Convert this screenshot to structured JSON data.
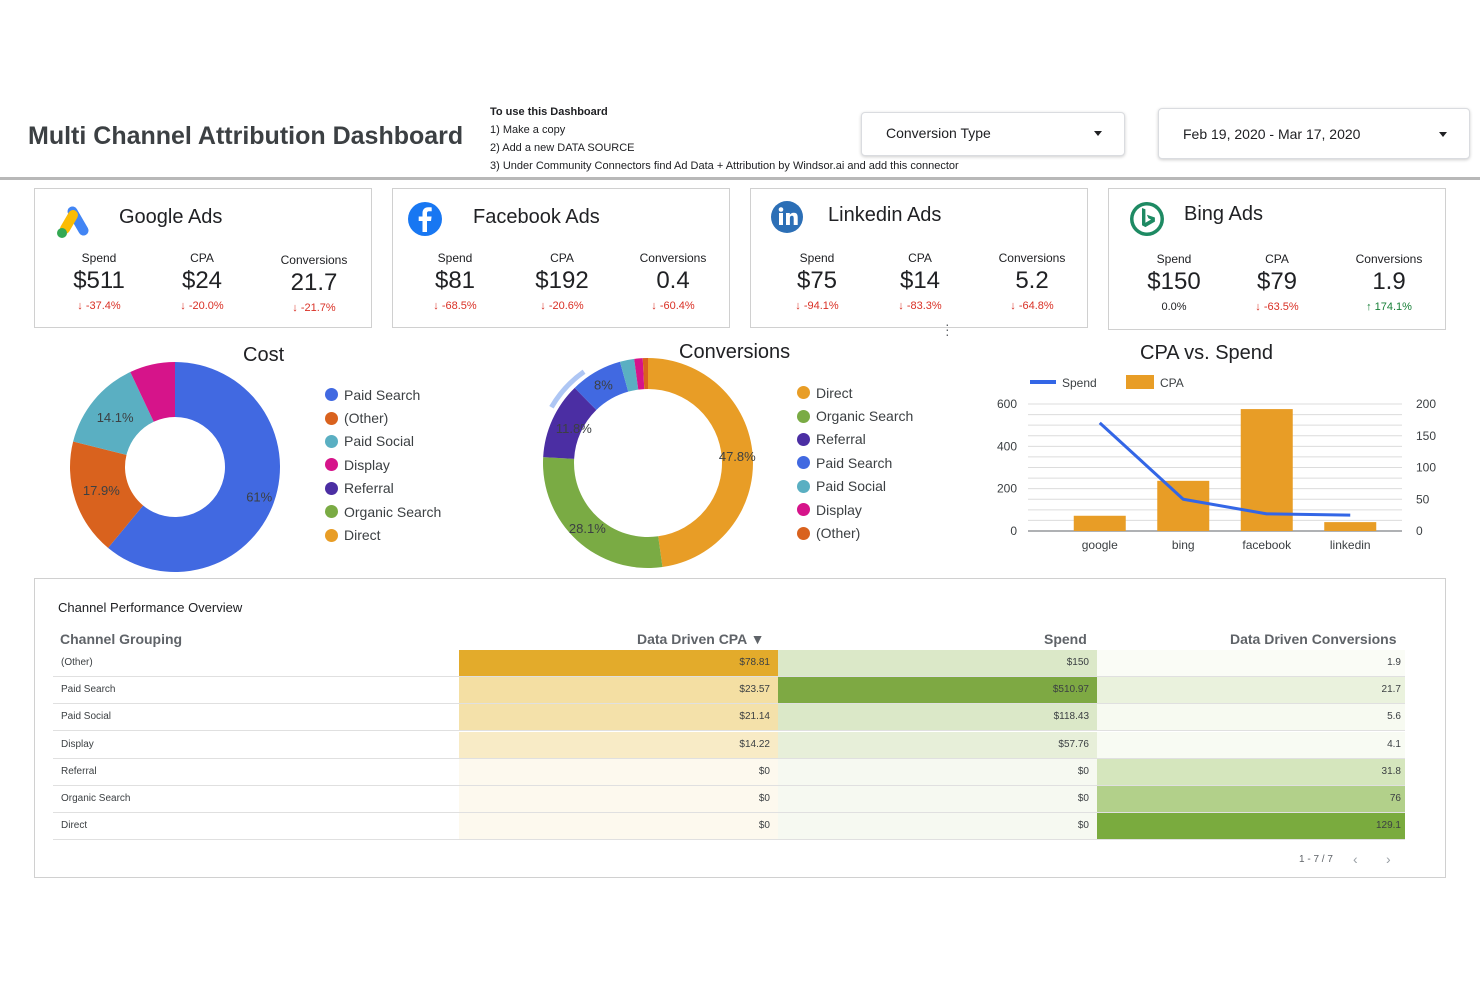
{
  "header": {
    "title": "Multi Channel Attribution Dashboard",
    "instructions": {
      "heading": "To use this Dashboard",
      "step1": "1) Make a copy",
      "step2": "2) Add a new DATA SOURCE",
      "step3": "3) Under Community Connectors find Ad Data + Attribution by Windsor.ai and add this connector"
    },
    "conversion_dropdown": "Conversion Type",
    "date_range": "Feb 19, 2020 - Mar 17, 2020"
  },
  "cards": [
    {
      "name": "Google Ads",
      "spend_label": "Spend",
      "spend": "$511",
      "spend_delta": "↓ -37.4%",
      "cpa_label": "CPA",
      "cpa": "$24",
      "cpa_delta": "↓ -20.0%",
      "conv_label": "Conversions",
      "conv": "21.7",
      "conv_delta": "↓ -21.7%"
    },
    {
      "name": "Facebook Ads",
      "spend_label": "Spend",
      "spend": "$81",
      "spend_delta": "↓ -68.5%",
      "cpa_label": "CPA",
      "cpa": "$192",
      "cpa_delta": "↓ -20.6%",
      "conv_label": "Conversions",
      "conv": "0.4",
      "conv_delta": "↓ -60.4%"
    },
    {
      "name": "Linkedin Ads",
      "spend_label": "Spend",
      "spend": "$75",
      "spend_delta": "↓ -94.1%",
      "cpa_label": "CPA",
      "cpa": "$14",
      "cpa_delta": "↓ -83.3%",
      "conv_label": "Conversions",
      "conv": "5.2",
      "conv_delta": "↓ -64.8%"
    },
    {
      "name": "Bing Ads",
      "spend_label": "Spend",
      "spend": "$150",
      "spend_delta": "0.0%",
      "cpa_label": "CPA",
      "cpa": "$79",
      "cpa_delta": "↓ -63.5%",
      "conv_label": "Conversions",
      "conv": "1.9",
      "conv_delta": "↑ 174.1%"
    }
  ],
  "colors": {
    "blue": "#4169e1",
    "orange_red": "#d9621e",
    "teal": "#5aafc2",
    "magenta": "#d6148a",
    "purple": "#4b2ea3",
    "green": "#7aab44",
    "amber": "#e89d26",
    "line_blue": "#3366e6",
    "bar_amber": "#e89d26"
  },
  "cost_chart": {
    "title": "Cost",
    "legend": [
      "Paid Search",
      "(Other)",
      "Paid Social",
      "Display",
      "Referral",
      "Organic Search",
      "Direct"
    ],
    "slices": [
      {
        "name": "Paid Search",
        "value": 61,
        "label": "61%",
        "color": "#4169e1"
      },
      {
        "name": "(Other)",
        "value": 17.9,
        "label": "17.9%",
        "color": "#d9621e"
      },
      {
        "name": "Paid Social",
        "value": 14.1,
        "label": "14.1%",
        "color": "#5aafc2"
      },
      {
        "name": "Display",
        "value": 7,
        "label": "",
        "color": "#d6148a"
      }
    ]
  },
  "conversions_chart": {
    "title": "Conversions",
    "legend": [
      "Direct",
      "Organic Search",
      "Referral",
      "Paid Search",
      "Paid Social",
      "Display",
      "(Other)"
    ],
    "slices": [
      {
        "name": "Direct",
        "value": 47.8,
        "label": "47.8%",
        "color": "#e89d26"
      },
      {
        "name": "Organic Search",
        "value": 28.1,
        "label": "28.1%",
        "color": "#7aab44"
      },
      {
        "name": "Referral",
        "value": 11.8,
        "label": "11.8%",
        "color": "#4b2ea3"
      },
      {
        "name": "Paid Search",
        "value": 8,
        "label": "8%",
        "color": "#4169e1"
      },
      {
        "name": "Paid Social",
        "value": 2.2,
        "label": "",
        "color": "#5aafc2"
      },
      {
        "name": "Display",
        "value": 1.3,
        "label": "",
        "color": "#d6148a"
      },
      {
        "name": "(Other)",
        "value": 0.8,
        "label": "",
        "color": "#d9621e"
      }
    ]
  },
  "chart_data": {
    "type": "bar",
    "title": "CPA vs. Spend",
    "categories": [
      "google",
      "bing",
      "facebook",
      "linkedin"
    ],
    "series": [
      {
        "name": "Spend",
        "type": "line",
        "axis": "left",
        "values": [
          511,
          150,
          81,
          75
        ]
      },
      {
        "name": "CPA",
        "type": "bar",
        "axis": "right",
        "values": [
          24,
          79,
          192,
          14
        ]
      }
    ],
    "left_ticks": [
      "0",
      "200",
      "400",
      "600"
    ],
    "right_ticks": [
      "0",
      "50",
      "100",
      "150",
      "200"
    ],
    "ylim_left": [
      0,
      600
    ],
    "ylim_right": [
      0,
      200
    ],
    "legend_position": "top-left",
    "grid": true
  },
  "table": {
    "title": "Channel Performance Overview",
    "headers": [
      "Channel Grouping",
      "Data Driven CPA ▼",
      "Spend",
      "Data Driven Conversions"
    ],
    "rows": [
      {
        "channel": "(Other)",
        "cpa": "$78.81",
        "spend": "$150",
        "conv": "1.9"
      },
      {
        "channel": "Paid Search",
        "cpa": "$23.57",
        "spend": "$510.97",
        "conv": "21.7"
      },
      {
        "channel": "Paid Social",
        "cpa": "$21.14",
        "spend": "$118.43",
        "conv": "5.6"
      },
      {
        "channel": "Display",
        "cpa": "$14.22",
        "spend": "$57.76",
        "conv": "4.1"
      },
      {
        "channel": "Referral",
        "cpa": "$0",
        "spend": "$0",
        "conv": "31.8"
      },
      {
        "channel": "Organic Search",
        "cpa": "$0",
        "spend": "$0",
        "conv": "76"
      },
      {
        "channel": "Direct",
        "cpa": "$0",
        "spend": "$0",
        "conv": "129.1"
      }
    ],
    "cpa_colors": [
      "#e3ab2b",
      "#f4dfa3",
      "#f4e1aa",
      "#f8ebc6",
      "#fdf9ee",
      "#fdf9ee",
      "#fdf9ee"
    ],
    "spend_colors": [
      "#dbe8c8",
      "#7ea943",
      "#dbe8c8",
      "#e7efd9",
      "#f6f9f1",
      "#f6f9f1",
      "#f6f9f1"
    ],
    "conv_colors": [
      "#fafcf6",
      "#eaf2dd",
      "#f7faf1",
      "#f8fbf3",
      "#d5e6bd",
      "#b2d08a",
      "#7aab3e"
    ],
    "pager": "1 - 7 / 7"
  }
}
